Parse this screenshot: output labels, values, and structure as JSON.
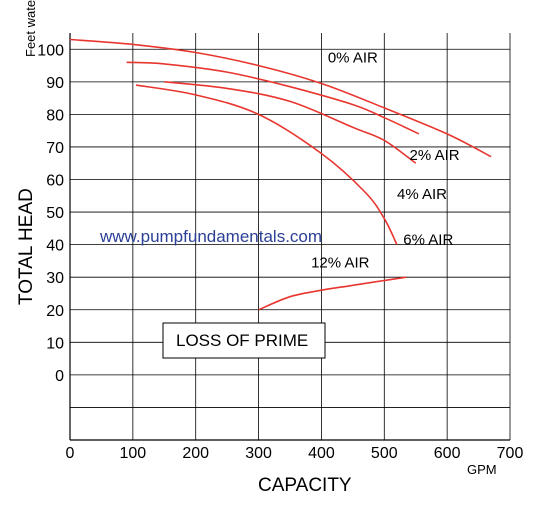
{
  "chart_data": {
    "type": "line",
    "xlabel": "CAPACITY",
    "xunit": "GPM",
    "ylabel": "TOTAL HEAD",
    "yunit": "Feet water",
    "xlim": [
      0,
      700
    ],
    "ylim": [
      -20,
      105
    ],
    "x_ticks": [
      0,
      100,
      200,
      300,
      400,
      500,
      600,
      700
    ],
    "y_ticks": [
      0,
      10,
      20,
      30,
      40,
      50,
      60,
      70,
      80,
      90,
      100
    ],
    "grid": true,
    "legend": "none",
    "watermark": "www.pumpfundamentals.com",
    "annotation_box": "LOSS OF PRIME",
    "series": [
      {
        "name": "0% AIR",
        "label_at": [
          450,
          96
        ],
        "x": [
          0,
          100,
          200,
          300,
          400,
          500,
          600,
          670
        ],
        "y": [
          103,
          101.5,
          99,
          95,
          89.5,
          82,
          74,
          67
        ]
      },
      {
        "name": "2% AIR",
        "label_at": [
          580,
          66
        ],
        "x": [
          90,
          150,
          250,
          350,
          450,
          500,
          555
        ],
        "y": [
          96,
          95.5,
          93,
          88.5,
          83,
          79,
          74
        ]
      },
      {
        "name": "4% AIR",
        "label_at": [
          560,
          54
        ],
        "x": [
          150,
          250,
          350,
          450,
          500,
          550
        ],
        "y": [
          90,
          88,
          84,
          76,
          72,
          65
        ]
      },
      {
        "name": "6% AIR",
        "label_at": [
          570,
          40
        ],
        "x": [
          105,
          200,
          300,
          400,
          470,
          500,
          520
        ],
        "y": [
          89,
          86,
          80,
          68,
          56,
          48,
          40
        ]
      },
      {
        "name": "12% AIR",
        "label_at": [
          430,
          33
        ],
        "x": [
          300,
          350,
          400,
          450,
          500,
          535
        ],
        "y": [
          20,
          24,
          26,
          27.5,
          29,
          30
        ]
      }
    ]
  },
  "colors": {
    "curve": "#e8362f",
    "watermark": "#2b3f96",
    "grid": "#000000"
  }
}
